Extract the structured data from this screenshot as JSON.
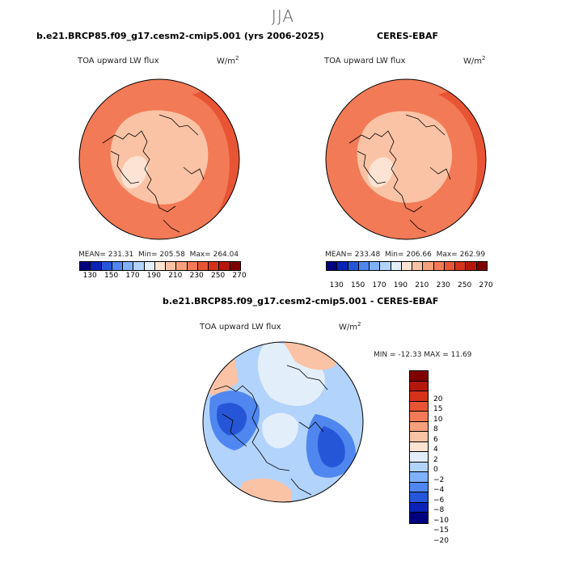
{
  "season": "JJA",
  "panels": [
    {
      "title": "b.e21.BRCP85.f09_g17.cesm2-cmip5.001 (yrs 2006-2025)",
      "variable": "TOA upward LW flux",
      "units": "W/m",
      "units_sup": "2",
      "mean": "MEAN= 231.31",
      "min": "Min= 205.58",
      "max": "Max= 264.04"
    },
    {
      "title": "CERES-EBAF",
      "variable": "TOA upward LW flux",
      "units": "W/m",
      "units_sup": "2",
      "mean": "MEAN= 233.48",
      "min": "Min= 206.66",
      "max": "Max= 262.99"
    }
  ],
  "diff": {
    "title": "b.e21.BRCP85.f09_g17.cesm2-cmip5.001 - CERES-EBAF",
    "variable": "TOA upward LW flux",
    "units": "W/m",
    "units_sup": "2",
    "minmax": "MIN = -12.33 MAX =  11.69"
  },
  "abs_colorbar": {
    "colors": [
      "#00007f",
      "#0a22b5",
      "#2656d8",
      "#4f86ef",
      "#7fb0f8",
      "#b2d3fb",
      "#e3eefb",
      "#fde3d3",
      "#fbc3a5",
      "#f7a07c",
      "#f27a56",
      "#e85535",
      "#d5321a",
      "#b5180b",
      "#800000"
    ],
    "tick_labels": [
      "130",
      "150",
      "170",
      "190",
      "210",
      "230",
      "250",
      "270"
    ]
  },
  "diff_colorbar": {
    "colors": [
      "#800000",
      "#b5180b",
      "#d5321a",
      "#e85535",
      "#f27a56",
      "#f7a07c",
      "#fbc3a5",
      "#fde3d3",
      "#e3eefb",
      "#b2d3fb",
      "#7fb0f8",
      "#4f86ef",
      "#2656d8",
      "#0a22b5",
      "#00007f"
    ],
    "tick_labels": [
      "20",
      "15",
      "10",
      "8",
      "6",
      "4",
      "2",
      "0",
      "−2",
      "−4",
      "−6",
      "−8",
      "−10",
      "−15",
      "−20"
    ]
  },
  "colors": {
    "map_outline": "#000000",
    "abs_base": "#f27a56",
    "abs_inner": "#fbc3a5",
    "abs_center": "#fde3d3",
    "abs_warm": "#e85535",
    "diff_base": "#b2d3fb",
    "diff_light": "#e3eefb",
    "diff_blue": "#4f86ef",
    "diff_deep": "#2656d8",
    "diff_warm": "#fbc3a5"
  }
}
